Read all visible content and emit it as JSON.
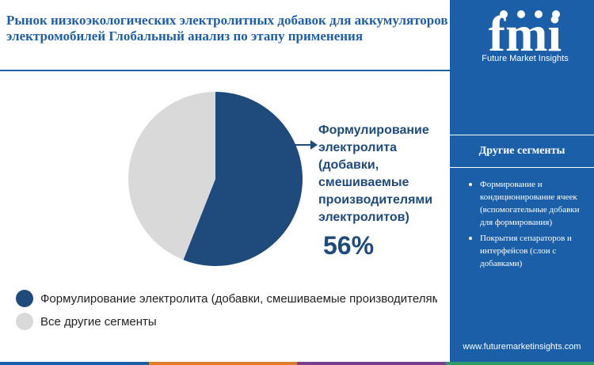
{
  "title": "Рынок низкоэкологических электролитных добавок для аккумуляторов электромобилей Глобальный анализ по этапу применения",
  "chart_data": {
    "type": "pie",
    "title": "Рынок низкоэкологических электролитных добавок для аккумуляторов электромобилей Глобальный анализ по этапу применения",
    "slices": [
      {
        "label": "Формулирование электролита (добавки, смешиваемые производителями электролитов)",
        "value": 56,
        "color": "#1e4a7c"
      },
      {
        "label": "Все другие сегменты",
        "value": 44,
        "color": "#d9d9d9"
      }
    ],
    "callout": {
      "label": "Формулирование электролита (добавки, смешиваемые производителями электролитов)",
      "value_label": "56%"
    },
    "legend": [
      {
        "label": "Формулирование электролита (добавки, смешиваемые производителями электролитов)",
        "color": "#1e4a7c"
      },
      {
        "label": "Все другие сегменты",
        "color": "#d9d9d9"
      }
    ],
    "legend_position": "bottom-left"
  },
  "sidebar": {
    "logo_tagline": "Future Market Insights",
    "heading": "Другие сегменты",
    "items": [
      "Формирование и кондиционирование ячеек (вспомогательные добавки для формирования)",
      "Покрытия сепараторов и интерфейсов (слои с добавками)"
    ],
    "url": "www.futuremarketinsights.com"
  },
  "colors": {
    "brand_blue": "#1a5fa8",
    "title_blue": "#1f5fa3",
    "bottom_bar": [
      "#1a5fa8",
      "#e07b2c",
      "#7a3e8e",
      "#2e9a6a"
    ]
  }
}
